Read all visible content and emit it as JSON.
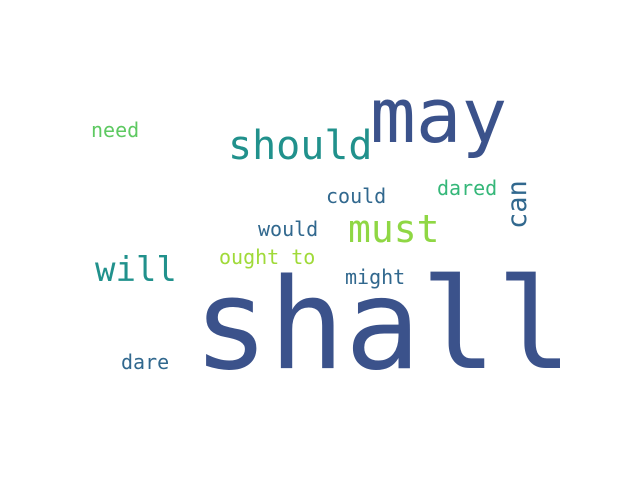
{
  "words": [
    {
      "text": "shall",
      "color": "#3b528b"
    },
    {
      "text": "may",
      "color": "#3b528b"
    },
    {
      "text": "should",
      "color": "#21918c"
    },
    {
      "text": "must",
      "color": "#8fd744"
    },
    {
      "text": "will",
      "color": "#21918c"
    },
    {
      "text": "can",
      "color": "#31688e"
    },
    {
      "text": "could",
      "color": "#31688e"
    },
    {
      "text": "dared",
      "color": "#35b779"
    },
    {
      "text": "would",
      "color": "#31688e"
    },
    {
      "text": "ought to",
      "color": "#a0da39"
    },
    {
      "text": "might",
      "color": "#31688e"
    },
    {
      "text": "need",
      "color": "#5ec962"
    },
    {
      "text": "dare",
      "color": "#31688e"
    }
  ]
}
